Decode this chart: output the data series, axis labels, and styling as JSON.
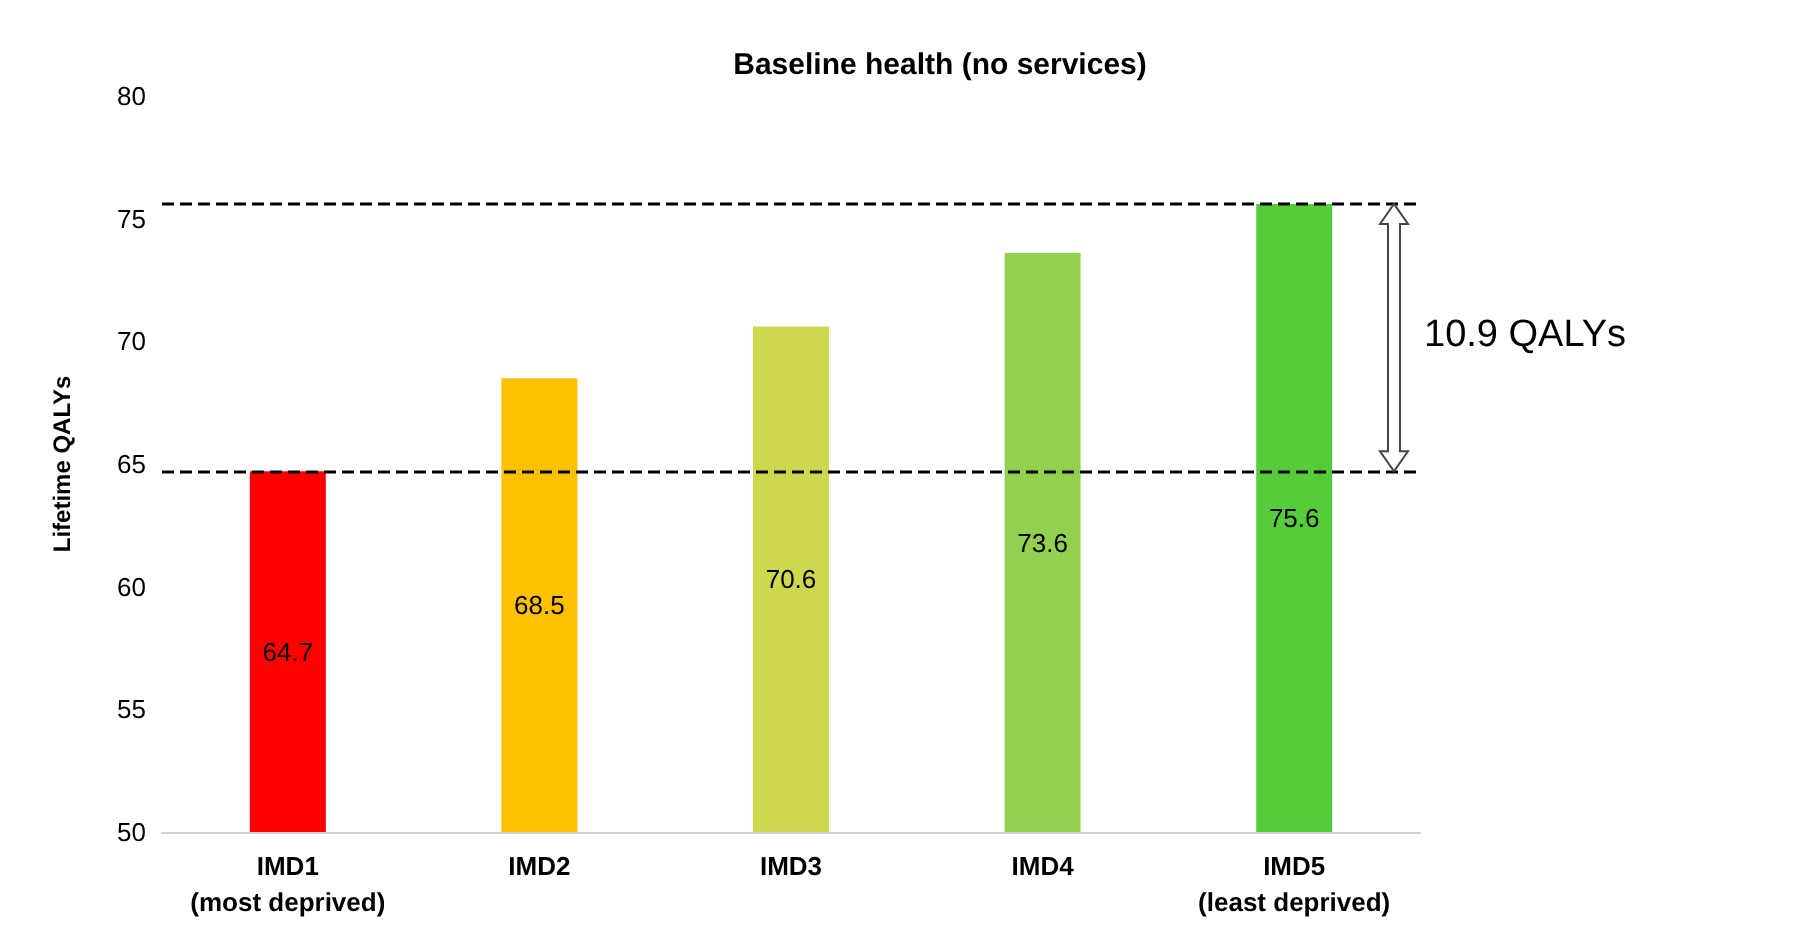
{
  "chart_data": {
    "type": "bar",
    "title": "Baseline health (no services)",
    "ylabel": "Lifetime QALYs",
    "categories": [
      "IMD1\n(most deprived)",
      "IMD2",
      "IMD3",
      "IMD4",
      "IMD5\n(least deprived)"
    ],
    "values": [
      64.7,
      68.5,
      70.6,
      73.6,
      75.6
    ],
    "colors": [
      "#ff0000",
      "#ffc000",
      "#cdd84c",
      "#92d050",
      "#55cc3a"
    ],
    "ylim": [
      50,
      80
    ],
    "yticks": [
      50,
      55,
      60,
      65,
      70,
      75,
      80
    ],
    "grid": false,
    "data_labels": true,
    "ref_lines": [
      {
        "axis": "y",
        "value": 64.7,
        "line_style": "dashed"
      },
      {
        "axis": "y",
        "value": 75.6,
        "line_style": "dashed"
      }
    ],
    "annotations": [
      "10.9 QALYs"
    ]
  }
}
